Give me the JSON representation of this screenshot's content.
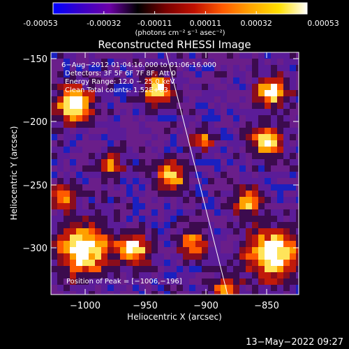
{
  "colorbar": {
    "ticks": [
      "-0.00053",
      "-0.00032",
      "-0.00011",
      "0.00011",
      "0.00032",
      "0.00053"
    ],
    "unit_label": "(photons cm⁻² s⁻¹ asec⁻²)",
    "stops": [
      "#0000ff",
      "#3a00c8",
      "#6d00a8",
      "#000000",
      "#7a0000",
      "#c01000",
      "#ff5a00",
      "#ffa500",
      "#ffe000",
      "#ffffff"
    ]
  },
  "plot": {
    "title": "Reconstructed RHESSI Image",
    "xlabel": "Heliocentric X (arcsec)",
    "ylabel": "Heliocentric Y (arcsec)",
    "xticks": [
      "−1000",
      "−950",
      "−900",
      "−850"
    ],
    "yticks": [
      "−150",
      "−200",
      "−250",
      "−300"
    ],
    "annotations": [
      "6−Aug−2012 01:04:16.000 to 01:06:16.000",
      "Detectors: 3F 5F 6F 7F 8F, Att 0",
      "Energy Range: 12.0 − 25.0 keV",
      "Clean     Total counts: 1.52E+03"
    ],
    "peak_label": "Position of Peak = [−1006,−196]"
  },
  "footer": {
    "timestamp": "13−May−2022 09:27"
  }
}
